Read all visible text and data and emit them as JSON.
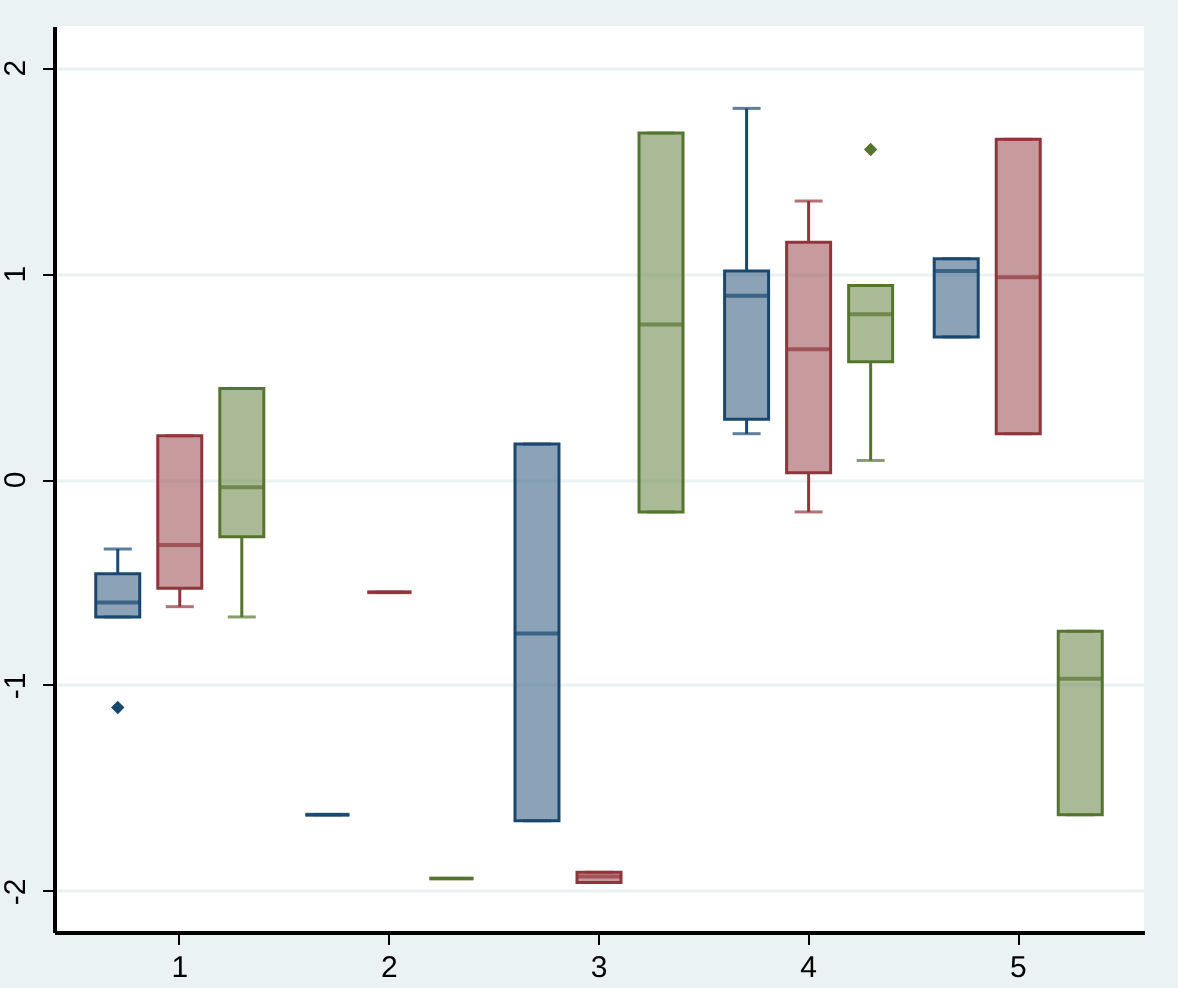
{
  "chart_data": {
    "type": "box",
    "categories": [
      "1",
      "2",
      "3",
      "4",
      "5"
    ],
    "ylim": [
      -2.2,
      2.2
    ],
    "yticks": [
      -2,
      -1,
      0,
      1,
      2
    ],
    "grid": "y",
    "marker": "diamond",
    "series": [
      {
        "color": "#1a476f",
        "boxes": [
          {
            "low": -0.67,
            "q1": -0.67,
            "median": -0.6,
            "q3": -0.46,
            "high": -0.34,
            "outliers": [
              -1.11
            ]
          },
          {
            "low": -1.63,
            "q1": -1.63,
            "median": -1.63,
            "q3": -1.63,
            "high": -1.63
          },
          {
            "low": -1.66,
            "q1": -1.66,
            "median": -0.75,
            "q3": 0.17,
            "high": 0.17
          },
          {
            "low": 0.22,
            "q1": 0.29,
            "median": 0.89,
            "q3": 1.01,
            "high": 1.8
          },
          {
            "low": 0.69,
            "q1": 0.69,
            "median": 1.01,
            "q3": 1.07,
            "high": 1.07
          }
        ]
      },
      {
        "color": "#90353b",
        "boxes": [
          {
            "low": -0.62,
            "q1": -0.53,
            "median": -0.32,
            "q3": 0.21,
            "high": 0.21
          },
          {
            "low": -0.55,
            "q1": -0.55,
            "median": -0.55,
            "q3": -0.55,
            "high": -0.55
          },
          {
            "low": -1.96,
            "q1": -1.96,
            "median": -1.93,
            "q3": -1.91,
            "high": -1.91
          },
          {
            "low": -0.16,
            "q1": 0.03,
            "median": 0.63,
            "q3": 1.15,
            "high": 1.35
          },
          {
            "low": 0.22,
            "q1": 0.22,
            "median": 0.98,
            "q3": 1.65,
            "high": 1.65
          }
        ]
      },
      {
        "color": "#55752f",
        "boxes": [
          {
            "low": -0.67,
            "q1": -0.28,
            "median": -0.04,
            "q3": 0.44,
            "high": 0.44
          },
          {
            "low": -1.94,
            "q1": -1.94,
            "median": -1.94,
            "q3": -1.94,
            "high": -1.94
          },
          {
            "low": -0.16,
            "q1": -0.16,
            "median": 0.75,
            "q3": 1.68,
            "high": 1.68
          },
          {
            "low": 0.09,
            "q1": 0.57,
            "median": 0.8,
            "q3": 0.94,
            "high": 0.94,
            "outliers": [
              1.6
            ]
          },
          {
            "low": -1.63,
            "q1": -1.63,
            "median": -0.97,
            "q3": -0.74,
            "high": -0.74
          }
        ]
      }
    ]
  }
}
